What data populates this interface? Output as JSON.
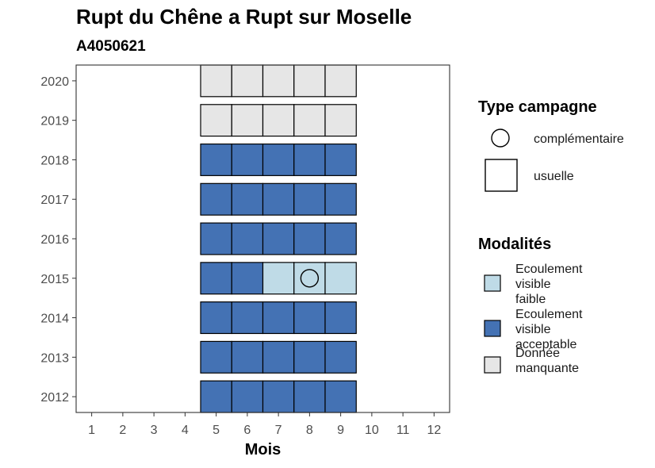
{
  "chart_data": {
    "type": "heatmap",
    "title": "Rupt du Chêne a Rupt sur Moselle",
    "subtitle": "A4050621",
    "xlabel": "Mois",
    "ylabel": "",
    "x_ticks": [
      "1",
      "2",
      "3",
      "4",
      "5",
      "6",
      "7",
      "8",
      "9",
      "10",
      "11",
      "12"
    ],
    "y_ticks": [
      "2012",
      "2013",
      "2014",
      "2015",
      "2016",
      "2017",
      "2018",
      "2019",
      "2020"
    ],
    "xlim": [
      0.5,
      12.5
    ],
    "ylim": [
      2011.6,
      2020.4
    ],
    "grid": false,
    "legend_position": "right",
    "legend": {
      "campaign_title": "Type campagne",
      "campaign_items": [
        {
          "label": "complémentaire",
          "shape": "circle"
        },
        {
          "label": "usuelle",
          "shape": "square"
        }
      ],
      "modality_title": "Modalités",
      "modality_items": [
        {
          "key": "faible",
          "label_lines": [
            "Ecoulement",
            "visible",
            "faible"
          ],
          "color": "#bfdbe7"
        },
        {
          "key": "acceptable",
          "label_lines": [
            "Ecoulement",
            "visible",
            "acceptable"
          ],
          "color": "#4472b4"
        },
        {
          "key": "manquante",
          "label_lines": [
            "Donnée",
            "manquante"
          ],
          "color": "#e6e6e6"
        }
      ]
    },
    "cells": [
      {
        "year": 2012,
        "month": 5,
        "modality": "acceptable",
        "campaign": "usuelle"
      },
      {
        "year": 2012,
        "month": 6,
        "modality": "acceptable",
        "campaign": "usuelle"
      },
      {
        "year": 2012,
        "month": 7,
        "modality": "acceptable",
        "campaign": "usuelle"
      },
      {
        "year": 2012,
        "month": 8,
        "modality": "acceptable",
        "campaign": "usuelle"
      },
      {
        "year": 2012,
        "month": 9,
        "modality": "acceptable",
        "campaign": "usuelle"
      },
      {
        "year": 2013,
        "month": 5,
        "modality": "acceptable",
        "campaign": "usuelle"
      },
      {
        "year": 2013,
        "month": 6,
        "modality": "acceptable",
        "campaign": "usuelle"
      },
      {
        "year": 2013,
        "month": 7,
        "modality": "acceptable",
        "campaign": "usuelle"
      },
      {
        "year": 2013,
        "month": 8,
        "modality": "acceptable",
        "campaign": "usuelle"
      },
      {
        "year": 2013,
        "month": 9,
        "modality": "acceptable",
        "campaign": "usuelle"
      },
      {
        "year": 2014,
        "month": 5,
        "modality": "acceptable",
        "campaign": "usuelle"
      },
      {
        "year": 2014,
        "month": 6,
        "modality": "acceptable",
        "campaign": "usuelle"
      },
      {
        "year": 2014,
        "month": 7,
        "modality": "acceptable",
        "campaign": "usuelle"
      },
      {
        "year": 2014,
        "month": 8,
        "modality": "acceptable",
        "campaign": "usuelle"
      },
      {
        "year": 2014,
        "month": 9,
        "modality": "acceptable",
        "campaign": "usuelle"
      },
      {
        "year": 2015,
        "month": 5,
        "modality": "acceptable",
        "campaign": "usuelle"
      },
      {
        "year": 2015,
        "month": 6,
        "modality": "acceptable",
        "campaign": "usuelle"
      },
      {
        "year": 2015,
        "month": 7,
        "modality": "faible",
        "campaign": "usuelle"
      },
      {
        "year": 2015,
        "month": 8,
        "modality": "faible",
        "campaign": "usuelle"
      },
      {
        "year": 2015,
        "month": 8,
        "modality": "faible",
        "campaign": "complémentaire"
      },
      {
        "year": 2015,
        "month": 9,
        "modality": "faible",
        "campaign": "usuelle"
      },
      {
        "year": 2016,
        "month": 5,
        "modality": "acceptable",
        "campaign": "usuelle"
      },
      {
        "year": 2016,
        "month": 6,
        "modality": "acceptable",
        "campaign": "usuelle"
      },
      {
        "year": 2016,
        "month": 7,
        "modality": "acceptable",
        "campaign": "usuelle"
      },
      {
        "year": 2016,
        "month": 8,
        "modality": "acceptable",
        "campaign": "usuelle"
      },
      {
        "year": 2016,
        "month": 9,
        "modality": "acceptable",
        "campaign": "usuelle"
      },
      {
        "year": 2017,
        "month": 5,
        "modality": "acceptable",
        "campaign": "usuelle"
      },
      {
        "year": 2017,
        "month": 6,
        "modality": "acceptable",
        "campaign": "usuelle"
      },
      {
        "year": 2017,
        "month": 7,
        "modality": "acceptable",
        "campaign": "usuelle"
      },
      {
        "year": 2017,
        "month": 8,
        "modality": "acceptable",
        "campaign": "usuelle"
      },
      {
        "year": 2017,
        "month": 9,
        "modality": "acceptable",
        "campaign": "usuelle"
      },
      {
        "year": 2018,
        "month": 5,
        "modality": "acceptable",
        "campaign": "usuelle"
      },
      {
        "year": 2018,
        "month": 6,
        "modality": "acceptable",
        "campaign": "usuelle"
      },
      {
        "year": 2018,
        "month": 7,
        "modality": "acceptable",
        "campaign": "usuelle"
      },
      {
        "year": 2018,
        "month": 8,
        "modality": "acceptable",
        "campaign": "usuelle"
      },
      {
        "year": 2018,
        "month": 9,
        "modality": "acceptable",
        "campaign": "usuelle"
      },
      {
        "year": 2019,
        "month": 5,
        "modality": "manquante",
        "campaign": "usuelle"
      },
      {
        "year": 2019,
        "month": 6,
        "modality": "manquante",
        "campaign": "usuelle"
      },
      {
        "year": 2019,
        "month": 7,
        "modality": "manquante",
        "campaign": "usuelle"
      },
      {
        "year": 2019,
        "month": 8,
        "modality": "manquante",
        "campaign": "usuelle"
      },
      {
        "year": 2019,
        "month": 9,
        "modality": "manquante",
        "campaign": "usuelle"
      },
      {
        "year": 2020,
        "month": 5,
        "modality": "manquante",
        "campaign": "usuelle"
      },
      {
        "year": 2020,
        "month": 6,
        "modality": "manquante",
        "campaign": "usuelle"
      },
      {
        "year": 2020,
        "month": 7,
        "modality": "manquante",
        "campaign": "usuelle"
      },
      {
        "year": 2020,
        "month": 8,
        "modality": "manquante",
        "campaign": "usuelle"
      },
      {
        "year": 2020,
        "month": 9,
        "modality": "manquante",
        "campaign": "usuelle"
      }
    ]
  }
}
